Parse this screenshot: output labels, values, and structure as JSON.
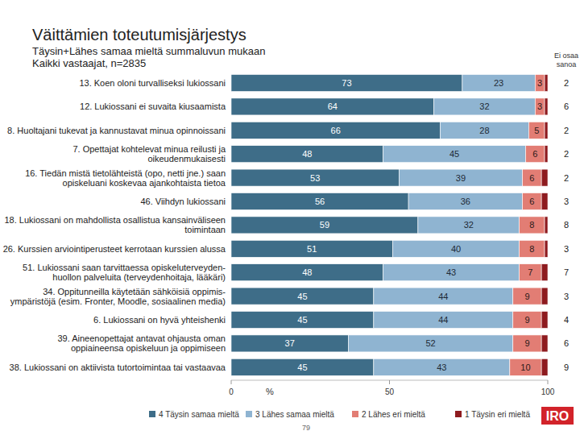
{
  "chart_data": {
    "type": "bar",
    "orientation": "horizontal",
    "stacked": true,
    "data_labels": true,
    "title": "Väittämien toteutumisjärjestys",
    "subtitle": "Täysin+Lähes samaa mieltä summaluvun mukaan\nKaikki vastaajat, n=2835",
    "x_label": "%",
    "xlim": [
      0,
      100
    ],
    "xticks": [
      0,
      50,
      100
    ],
    "legend": "bottom",
    "categories": [
      "13. Koen oloni turvalliseksi lukiossani",
      "12. Lukiossani ei suvaita kiusaamista",
      "8. Huoltajani tukevat ja kannustavat minua opinnoissani",
      "7. Opettajat kohtelevat minua reilusti ja\noikeudenmukaisesti",
      "16. Tiedän mistä tietolähteistä (opo, netti jne.) saan\nopiskeluani koskevaa ajankohtaista tietoa",
      "46. Viihdyn lukiossani",
      "18. Lukiossani on mahdollista osallistua kansainväliseen\ntoimintaan",
      "26. Kurssien arviointiperusteet kerrotaan kurssien alussa",
      "51. Lukiossani saan tarvittaessa opiskeluterveyden-\nhuollon palveluita (terveydenhoitaja, lääkäri)",
      "34. Oppitunneilla käytetään sähköisiä oppimis-\nympäristöjä (esim. Fronter, Moodle, sosiaalinen media)",
      "6. Lukiossani on hyvä yhteishenki",
      "39. Aineenopettajat antavat ohjausta oman\noppiaineensa opiskeluun ja oppimiseen",
      "38. Lukiossani on aktiivista tutortoimintaa tai vastaavaa"
    ],
    "series": [
      {
        "name": "4 Täysin samaa mieltä",
        "color": "#3e6d88",
        "values": [
          73,
          64,
          66,
          48,
          53,
          56,
          59,
          51,
          48,
          45,
          45,
          37,
          45
        ]
      },
      {
        "name": "3 Lähes samaa mieltä",
        "color": "#8fb4d1",
        "values": [
          23,
          32,
          28,
          45,
          39,
          36,
          32,
          40,
          43,
          44,
          44,
          52,
          43
        ]
      },
      {
        "name": "2 Lähes eri mieltä",
        "color": "#e27d74",
        "values": [
          3,
          3,
          5,
          6,
          6,
          6,
          8,
          8,
          7,
          9,
          9,
          9,
          10
        ]
      },
      {
        "name": "1 Täysin eri mieltä",
        "color": "#8e1b1f",
        "values": [
          1,
          1,
          1,
          1,
          2,
          2,
          1,
          1,
          2,
          2,
          2,
          2,
          2
        ],
        "value_labels": [
          null,
          null,
          null,
          null,
          null,
          null,
          null,
          null,
          null,
          null,
          null,
          null,
          null
        ]
      }
    ],
    "ei_osaa_sanoa": {
      "name": "Ei osaa\nsanoa",
      "values": [
        2,
        6,
        2,
        2,
        2,
        3,
        8,
        3,
        7,
        3,
        4,
        6,
        9
      ]
    },
    "page_number": "79",
    "logo": "IRO"
  }
}
